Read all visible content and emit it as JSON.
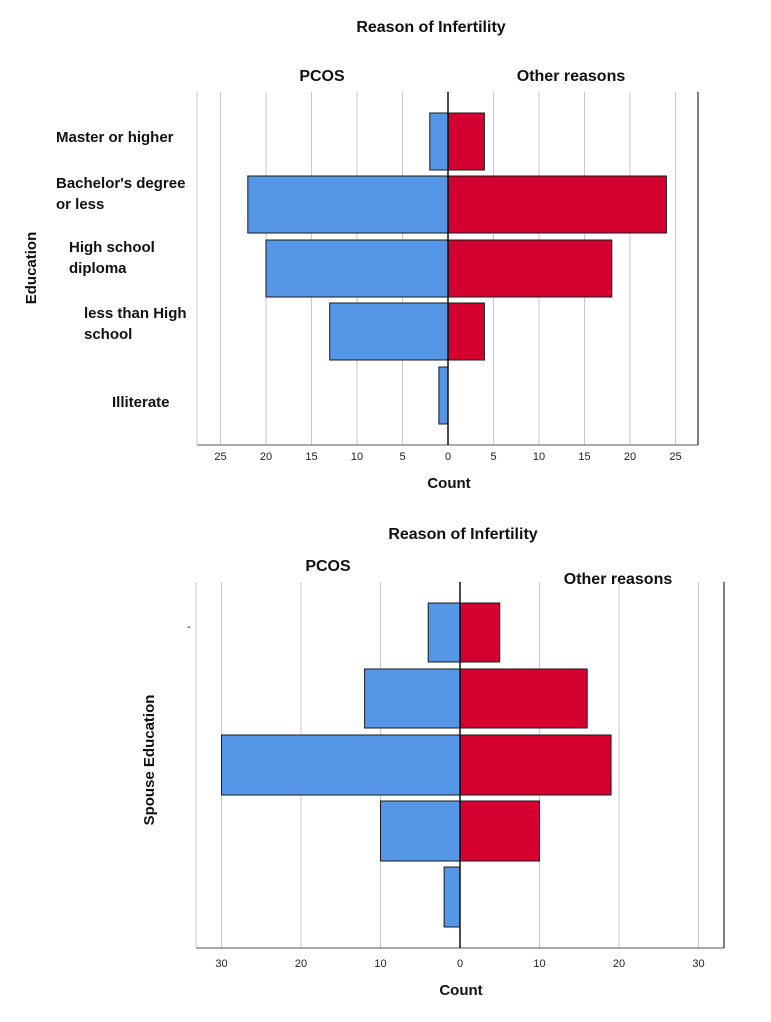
{
  "chart_data": [
    {
      "type": "bar",
      "orientation": "horizontal-population-pyramid",
      "title": "Reason of Infertility",
      "left_group": "PCOS",
      "right_group": "Other reasons",
      "ylabel": "Education",
      "xlabel": "Count",
      "categories": [
        "Master or higher",
        "Bachelor's degree or less",
        "High school diploma",
        "less than High school",
        "Illiterate"
      ],
      "category_lines": [
        [
          "Master or higher"
        ],
        [
          "Bachelor's degree",
          "or less"
        ],
        [
          "High school",
          "diploma"
        ],
        [
          "less than High",
          "school"
        ],
        [
          "Illiterate"
        ]
      ],
      "series": [
        {
          "name": "PCOS",
          "side": "left",
          "color": "#5596e6",
          "values": [
            2,
            22,
            20,
            13,
            1
          ]
        },
        {
          "name": "Other reasons",
          "side": "right",
          "color": "#d30030",
          "values": [
            4,
            24,
            18,
            4,
            0
          ]
        }
      ],
      "xlim": [
        -27.5,
        27.5
      ],
      "xticks": [
        25,
        20,
        15,
        10,
        5,
        0,
        5,
        10,
        15,
        20,
        25
      ]
    },
    {
      "type": "bar",
      "orientation": "horizontal-population-pyramid",
      "title": "Reason of Infertility",
      "left_group": "PCOS",
      "right_group": "Other reasons",
      "ylabel": "Spouse Education",
      "xlabel": "Count",
      "categories": [
        "",
        "",
        "",
        "",
        ""
      ],
      "stray_mark": "-",
      "series": [
        {
          "name": "PCOS",
          "side": "left",
          "color": "#5596e6",
          "values": [
            4,
            12,
            30,
            10,
            2
          ]
        },
        {
          "name": "Other reasons",
          "side": "right",
          "color": "#d30030",
          "values": [
            5,
            16,
            19,
            10,
            0
          ]
        }
      ],
      "xlim": [
        -33,
        33
      ],
      "xticks": [
        30,
        20,
        10,
        0,
        10,
        20,
        30
      ]
    }
  ]
}
